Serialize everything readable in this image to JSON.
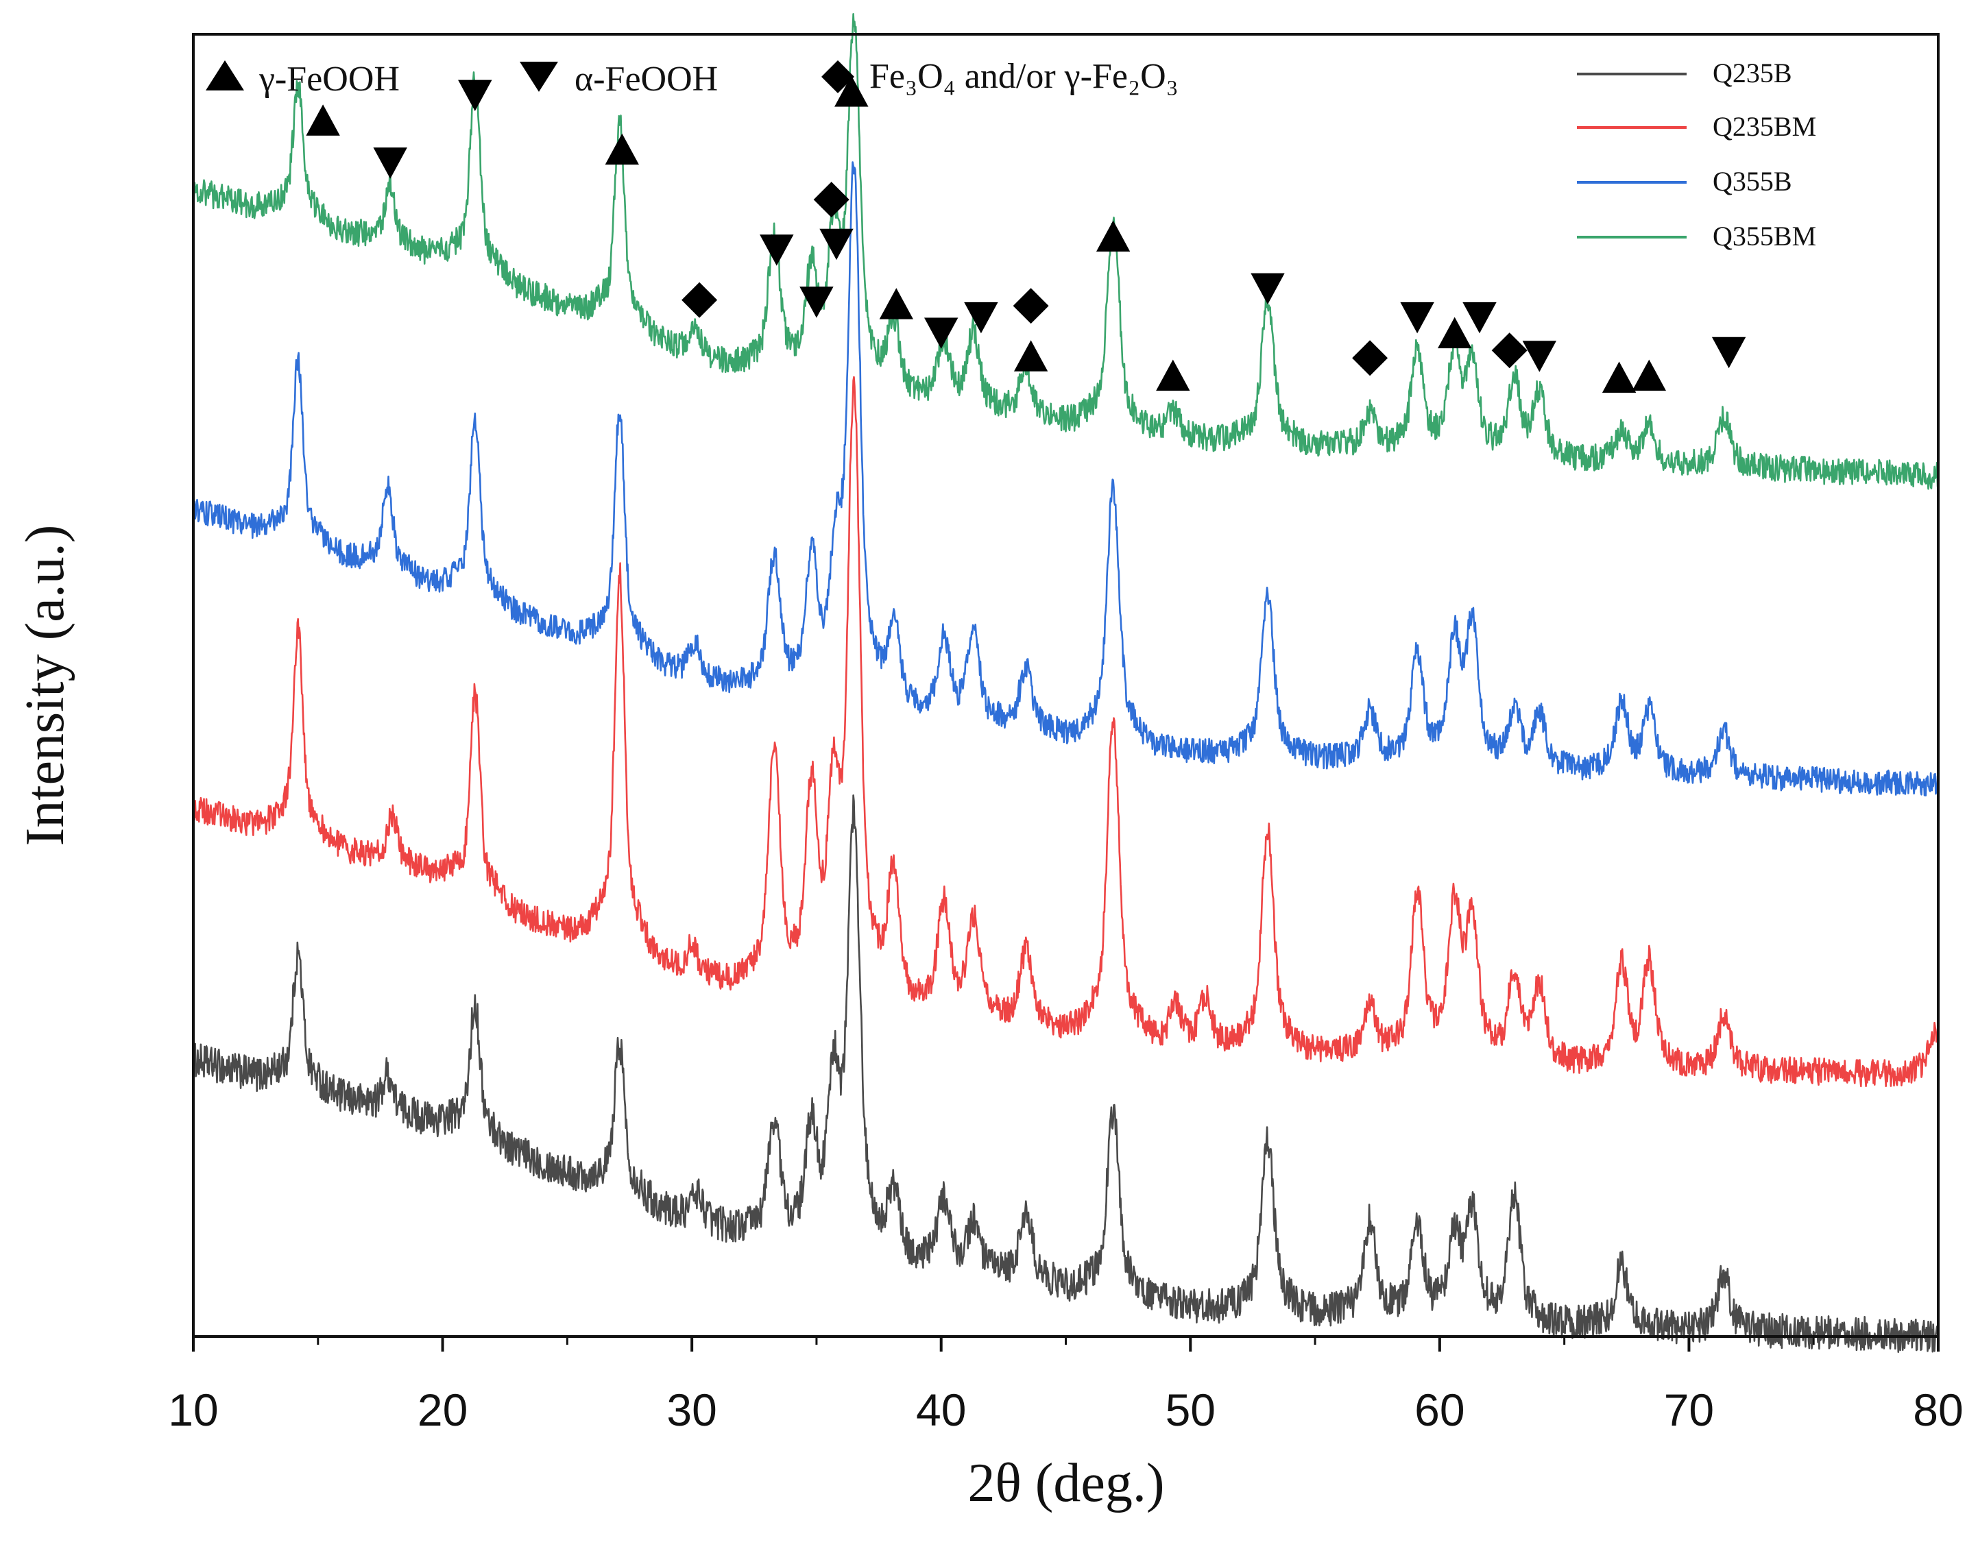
{
  "chart_data": {
    "type": "line",
    "title": "",
    "xlabel": "2θ (deg.)",
    "ylabel": "Intensity (a.u.)",
    "xlim": [
      10,
      80
    ],
    "x_ticks": [
      10,
      20,
      30,
      40,
      50,
      60,
      70,
      80
    ],
    "x_tick_labels": [
      "10",
      "20",
      "30",
      "40",
      "50",
      "60",
      "70",
      "80"
    ],
    "y_ticks": [],
    "legend": {
      "placement": "top-right",
      "entries": [
        {
          "name": "Q235B",
          "color": "#4a4a4a"
        },
        {
          "name": "Q235BM",
          "color": "#ee4444"
        },
        {
          "name": "Q355B",
          "color": "#2f6fd8"
        },
        {
          "name": "Q355BM",
          "color": "#3aa56c"
        }
      ]
    },
    "phase_legend": [
      {
        "marker": "triangle-up",
        "label": "γ-FeOOH"
      },
      {
        "marker": "triangle-down",
        "label": "α-FeOOH"
      },
      {
        "marker": "diamond",
        "label": "Fe₃O₄ and/or γ-Fe₂O₃"
      }
    ],
    "series": [
      {
        "name": "Q235B",
        "color": "#4a4a4a",
        "baseline": [
          [
            10,
            1.45
          ],
          [
            20,
            1.12
          ],
          [
            30,
            0.62
          ],
          [
            40,
            0.38
          ],
          [
            50,
            0.18
          ],
          [
            60,
            0.12
          ],
          [
            70,
            0.06
          ],
          [
            80,
            0.02
          ]
        ],
        "peaks": [
          [
            14.2,
            0.55
          ],
          [
            17.8,
            0.15
          ],
          [
            21.3,
            0.55
          ],
          [
            27.1,
            0.62
          ],
          [
            30.2,
            0.12
          ],
          [
            33.3,
            0.48
          ],
          [
            34.8,
            0.45
          ],
          [
            35.7,
            0.6
          ],
          [
            36.5,
            1.75
          ],
          [
            38.1,
            0.28
          ],
          [
            40.1,
            0.28
          ],
          [
            41.3,
            0.2
          ],
          [
            43.4,
            0.28
          ],
          [
            46.9,
            0.75
          ],
          [
            53.1,
            0.7
          ],
          [
            57.2,
            0.38
          ],
          [
            59.1,
            0.38
          ],
          [
            60.6,
            0.32
          ],
          [
            61.3,
            0.42
          ],
          [
            63.0,
            0.5
          ],
          [
            67.3,
            0.25
          ],
          [
            71.4,
            0.22
          ]
        ],
        "noise": 0.09,
        "offset": 0
      },
      {
        "name": "Q235BM",
        "color": "#ee4444",
        "baseline": [
          [
            10,
            1.4
          ],
          [
            20,
            1.05
          ],
          [
            21,
            0.95
          ],
          [
            30,
            0.55
          ],
          [
            40,
            0.35
          ],
          [
            50,
            0.18
          ],
          [
            60,
            0.12
          ],
          [
            70,
            0.06
          ],
          [
            80,
            0.02
          ]
        ],
        "peaks": [
          [
            14.2,
            0.85
          ],
          [
            18.0,
            0.2
          ],
          [
            21.3,
            0.85
          ],
          [
            27.1,
            1.55
          ],
          [
            30.0,
            0.12
          ],
          [
            33.3,
            0.95
          ],
          [
            34.8,
            0.8
          ],
          [
            35.7,
            0.7
          ],
          [
            36.5,
            2.45
          ],
          [
            38.1,
            0.55
          ],
          [
            40.1,
            0.45
          ],
          [
            41.3,
            0.4
          ],
          [
            43.4,
            0.3
          ],
          [
            46.9,
            1.3
          ],
          [
            49.4,
            0.15
          ],
          [
            50.6,
            0.2
          ],
          [
            53.1,
            0.9
          ],
          [
            57.2,
            0.2
          ],
          [
            59.1,
            0.68
          ],
          [
            60.6,
            0.6
          ],
          [
            61.3,
            0.55
          ],
          [
            63.0,
            0.35
          ],
          [
            64.0,
            0.3
          ],
          [
            67.3,
            0.4
          ],
          [
            68.4,
            0.42
          ],
          [
            71.4,
            0.22
          ],
          [
            79.8,
            0.18
          ]
        ],
        "noise": 0.07,
        "offset": 1.35
      },
      {
        "name": "Q355B",
        "color": "#2f6fd8",
        "baseline": [
          [
            10,
            1.45
          ],
          [
            20,
            1.05
          ],
          [
            30,
            0.58
          ],
          [
            40,
            0.38
          ],
          [
            50,
            0.2
          ],
          [
            60,
            0.14
          ],
          [
            70,
            0.08
          ],
          [
            80,
            0.02
          ]
        ],
        "peaks": [
          [
            14.2,
            0.75
          ],
          [
            17.8,
            0.35
          ],
          [
            21.3,
            0.75
          ],
          [
            27.1,
            1.0
          ],
          [
            30.1,
            0.15
          ],
          [
            33.3,
            0.55
          ],
          [
            34.8,
            0.55
          ],
          [
            35.8,
            0.5
          ],
          [
            36.5,
            2.15
          ],
          [
            38.1,
            0.35
          ],
          [
            40.1,
            0.32
          ],
          [
            41.3,
            0.35
          ],
          [
            43.4,
            0.25
          ],
          [
            46.9,
            1.05
          ],
          [
            53.1,
            0.65
          ],
          [
            57.2,
            0.2
          ],
          [
            59.1,
            0.45
          ],
          [
            60.6,
            0.48
          ],
          [
            61.3,
            0.55
          ],
          [
            63.0,
            0.22
          ],
          [
            64.0,
            0.22
          ],
          [
            67.3,
            0.28
          ],
          [
            68.4,
            0.25
          ],
          [
            71.4,
            0.18
          ]
        ],
        "noise": 0.065,
        "offset": 2.85
      },
      {
        "name": "Q355BM",
        "color": "#3aa56c",
        "baseline": [
          [
            10,
            1.5
          ],
          [
            20,
            1.15
          ],
          [
            30,
            0.65
          ],
          [
            40,
            0.4
          ],
          [
            50,
            0.22
          ],
          [
            60,
            0.15
          ],
          [
            70,
            0.08
          ],
          [
            80,
            0.02
          ]
        ],
        "peaks": [
          [
            14.2,
            0.55
          ],
          [
            17.9,
            0.25
          ],
          [
            21.3,
            0.8
          ],
          [
            27.1,
            0.85
          ],
          [
            30.1,
            0.1
          ],
          [
            33.3,
            0.55
          ],
          [
            34.8,
            0.42
          ],
          [
            35.7,
            0.55
          ],
          [
            36.5,
            1.45
          ],
          [
            38.1,
            0.3
          ],
          [
            40.1,
            0.25
          ],
          [
            41.3,
            0.3
          ],
          [
            43.4,
            0.2
          ],
          [
            46.9,
            0.85
          ],
          [
            49.3,
            0.1
          ],
          [
            53.1,
            0.6
          ],
          [
            57.2,
            0.15
          ],
          [
            59.1,
            0.4
          ],
          [
            60.6,
            0.4
          ],
          [
            61.3,
            0.35
          ],
          [
            63.0,
            0.3
          ],
          [
            64.0,
            0.25
          ],
          [
            67.3,
            0.12
          ],
          [
            68.4,
            0.15
          ],
          [
            71.4,
            0.2
          ]
        ],
        "noise": 0.07,
        "offset": 4.45
      }
    ],
    "annotations": [
      {
        "marker": "triangle-up",
        "x": 15.2,
        "level": 6.3
      },
      {
        "marker": "triangle-down",
        "x": 17.9,
        "level": 6.1
      },
      {
        "marker": "triangle-down",
        "x": 21.3,
        "level": 6.45
      },
      {
        "marker": "triangle-up",
        "x": 27.2,
        "level": 6.15
      },
      {
        "marker": "diamond",
        "x": 30.3,
        "level": 5.38
      },
      {
        "marker": "triangle-down",
        "x": 33.4,
        "level": 5.65
      },
      {
        "marker": "triangle-down",
        "x": 35.0,
        "level": 5.38
      },
      {
        "marker": "diamond",
        "x": 35.6,
        "level": 5.9
      },
      {
        "marker": "triangle-down",
        "x": 35.8,
        "level": 5.68
      },
      {
        "marker": "triangle-up",
        "x": 36.4,
        "level": 6.45
      },
      {
        "marker": "triangle-up",
        "x": 38.2,
        "level": 5.35
      },
      {
        "marker": "triangle-down",
        "x": 40.0,
        "level": 5.22
      },
      {
        "marker": "triangle-down",
        "x": 41.6,
        "level": 5.3
      },
      {
        "marker": "diamond",
        "x": 43.6,
        "level": 5.35
      },
      {
        "marker": "triangle-up",
        "x": 43.6,
        "level": 5.08
      },
      {
        "marker": "triangle-up",
        "x": 46.9,
        "level": 5.7
      },
      {
        "marker": "triangle-up",
        "x": 49.3,
        "level": 4.98
      },
      {
        "marker": "triangle-down",
        "x": 53.1,
        "level": 5.45
      },
      {
        "marker": "diamond",
        "x": 57.2,
        "level": 5.08
      },
      {
        "marker": "triangle-down",
        "x": 59.1,
        "level": 5.3
      },
      {
        "marker": "triangle-up",
        "x": 60.6,
        "level": 5.2
      },
      {
        "marker": "triangle-down",
        "x": 61.6,
        "level": 5.3
      },
      {
        "marker": "diamond",
        "x": 62.8,
        "level": 5.12
      },
      {
        "marker": "triangle-down",
        "x": 64.0,
        "level": 5.1
      },
      {
        "marker": "triangle-up",
        "x": 67.2,
        "level": 4.97
      },
      {
        "marker": "triangle-up",
        "x": 68.4,
        "level": 4.98
      },
      {
        "marker": "triangle-down",
        "x": 71.6,
        "level": 5.12
      }
    ],
    "grid": false
  }
}
